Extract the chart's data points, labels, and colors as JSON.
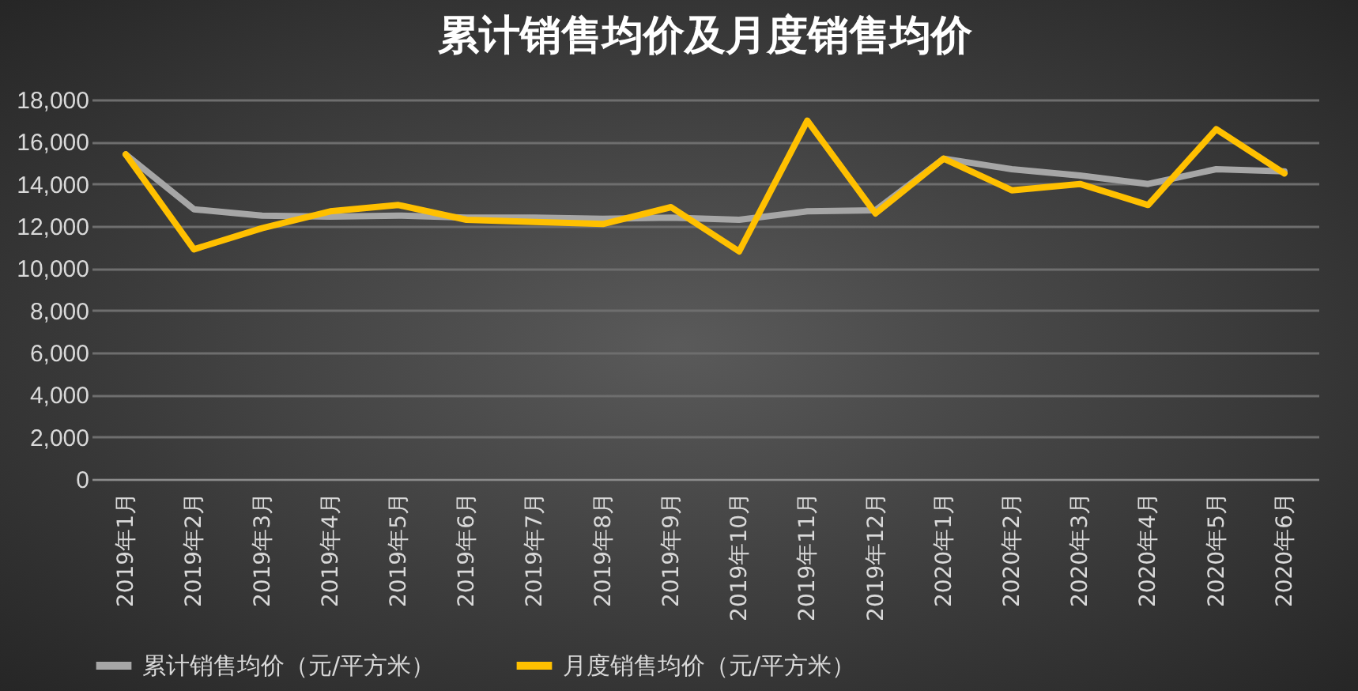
{
  "chart_data": {
    "type": "line",
    "title": "累计销售均价及月度销售均价",
    "categories": [
      "2019年1月",
      "2019年2月",
      "2019年3月",
      "2019年4月",
      "2019年5月",
      "2019年6月",
      "2019年7月",
      "2019年8月",
      "2019年9月",
      "2019年10月",
      "2019年11月",
      "2019年12月",
      "2020年1月",
      "2020年2月",
      "2020年3月",
      "2020年4月",
      "2020年5月",
      "2020年6月"
    ],
    "series": [
      {
        "name": "累计销售均价（元/平方米）",
        "color": "#a6a6a6",
        "values": [
          15400,
          12800,
          12500,
          12450,
          12500,
          12400,
          12400,
          12350,
          12400,
          12300,
          12700,
          12750,
          15200,
          14700,
          14400,
          14000,
          14700,
          14600
        ]
      },
      {
        "name": "月度销售均价（元/平方米）",
        "color": "#ffc000",
        "values": [
          15400,
          10900,
          11900,
          12700,
          13000,
          12300,
          12200,
          12100,
          12900,
          10800,
          17000,
          12600,
          15200,
          13700,
          14000,
          13000,
          16600,
          14500
        ]
      }
    ],
    "ylim": [
      0,
      18000
    ],
    "yticks": [
      0,
      {
        "value": 2000,
        "label": "2,000"
      },
      {
        "value": 4000,
        "label": "4,000"
      },
      {
        "value": 6000,
        "label": "6,000"
      },
      {
        "value": 8000,
        "label": "8,000"
      },
      {
        "value": 10000,
        "label": "10,000"
      },
      {
        "value": 12000,
        "label": "12,000"
      },
      {
        "value": 14000,
        "label": "14,000"
      },
      {
        "value": 16000,
        "label": "16,000"
      },
      {
        "value": 18000,
        "label": "18,000"
      }
    ],
    "grid": "y",
    "legend": "bottom",
    "line_style": "solid",
    "marker": "none"
  }
}
